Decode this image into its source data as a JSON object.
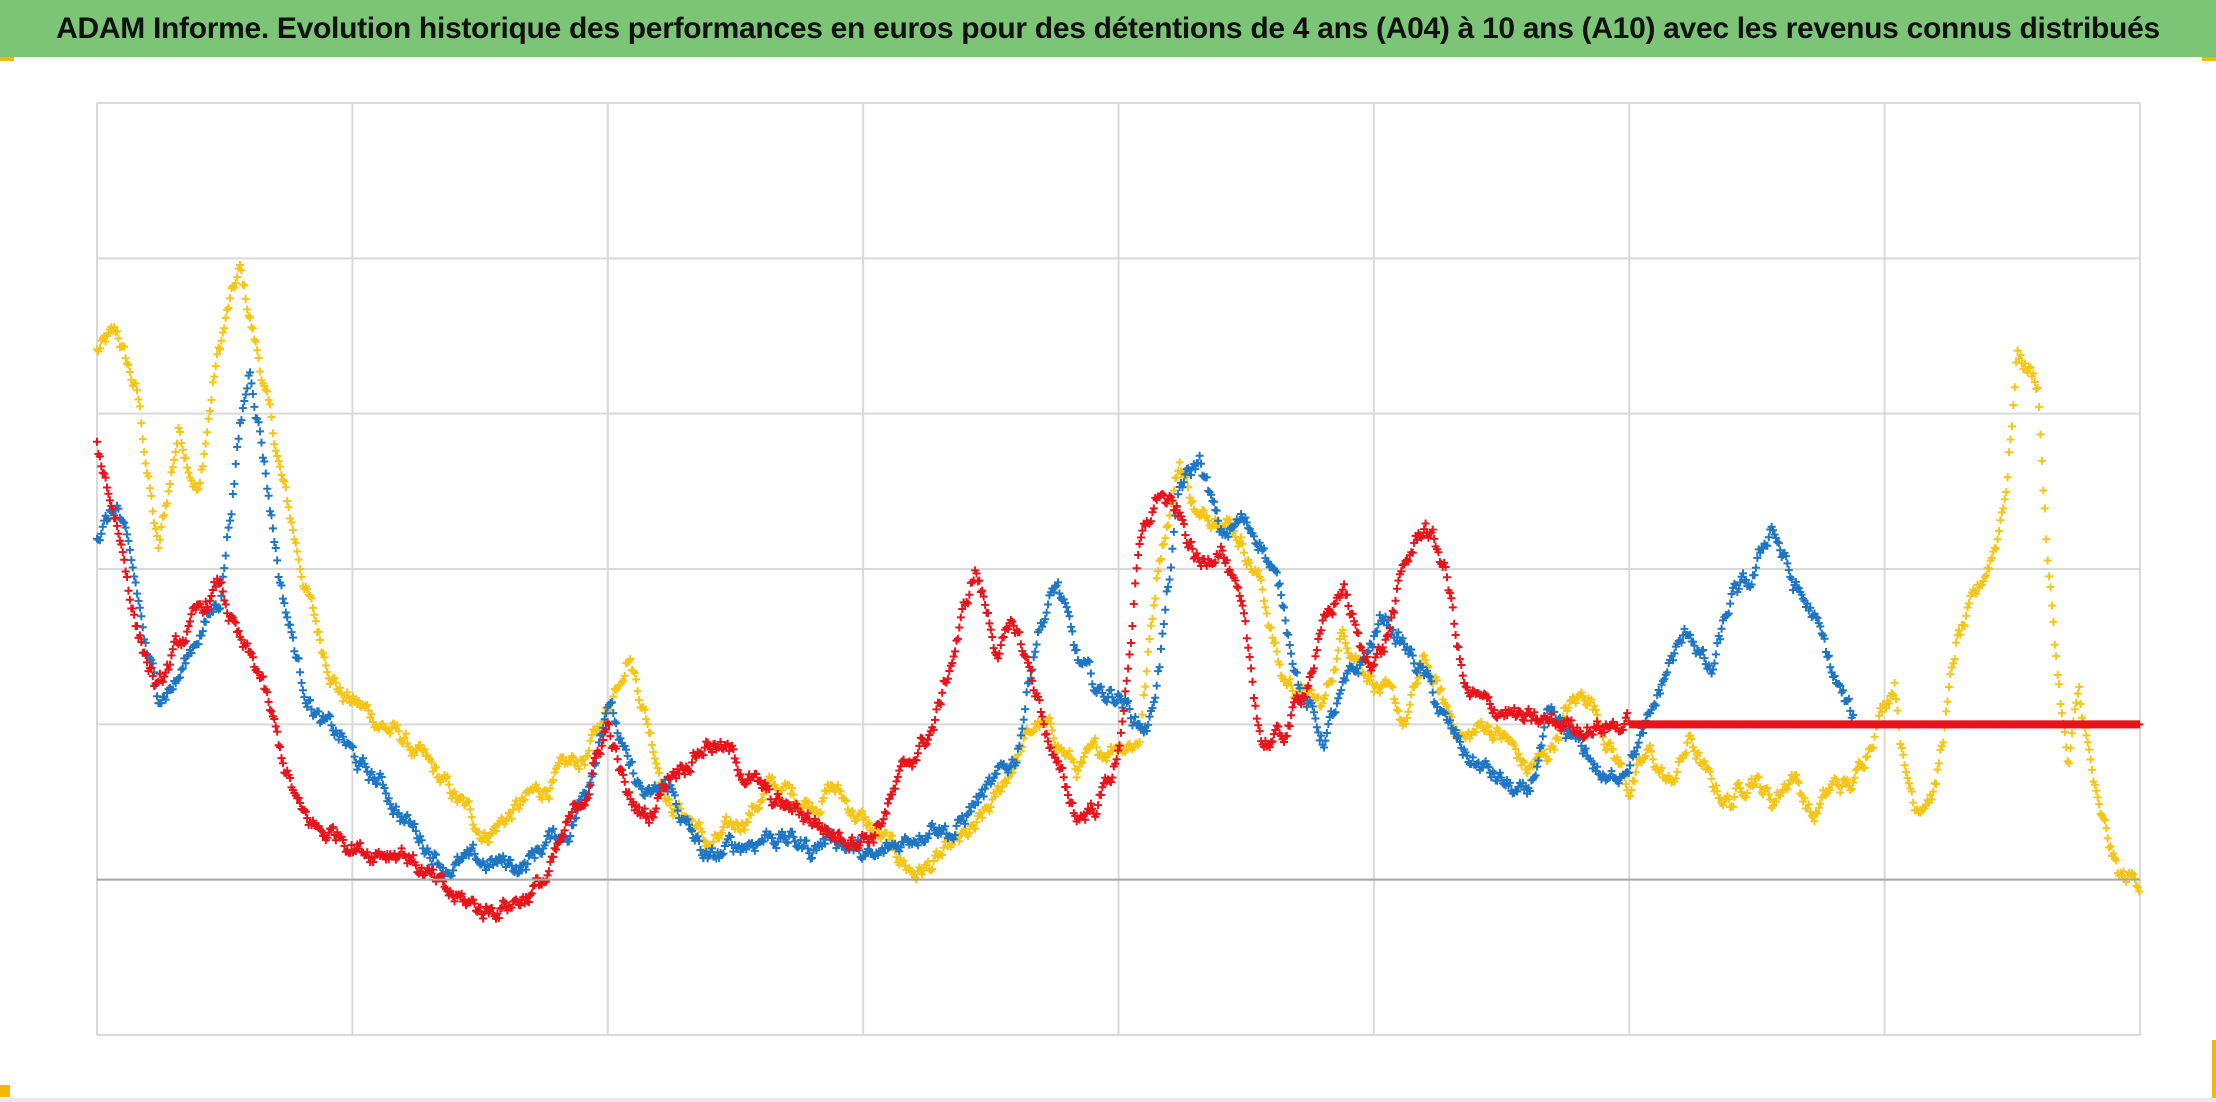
{
  "title": "ADAM Informe. Evolution historique des performances en euros pour des détentions de 4 ans (A04) à 10 ans (A10) avec les revenus connus distribués",
  "colors": {
    "header_bg": "#7cc576",
    "corner_accent": "#f5b800",
    "grid": "#d9d9d9",
    "baseline": "#a6a6a6"
  },
  "chart_data": {
    "type": "scatter",
    "marker": "plus",
    "title": "ADAM Informe. Evolution historique des performances en euros pour des détentions de 4 ans (A04) à 10 ans (A10) avec les revenus connus distribués",
    "xlabel": "",
    "ylabel": "",
    "xlim": [
      0,
      100
    ],
    "ylim": [
      -1,
      5
    ],
    "x_gridlines": 12.5,
    "y_gridlines": 5,
    "baseline_y": 0,
    "grid": true,
    "legend": "none",
    "series": [
      {
        "color": "#f5c518",
        "x": [
          0,
          1,
          2,
          3,
          4,
          5,
          5.8,
          6.5,
          7,
          8,
          9,
          10,
          11,
          12,
          13,
          14,
          15,
          17,
          19,
          21,
          23,
          24,
          25,
          26,
          27,
          28,
          29,
          30,
          31,
          33,
          35,
          36,
          38,
          40,
          41,
          42,
          43,
          44,
          45,
          46,
          47,
          48,
          49,
          50,
          51,
          51.5,
          52,
          53,
          54,
          55,
          56,
          57,
          58,
          59,
          60,
          61,
          62,
          63,
          64,
          65,
          66,
          67,
          68,
          69,
          70,
          71,
          72,
          73,
          74,
          75,
          76,
          77,
          78,
          79,
          80,
          81,
          82,
          83,
          84,
          85,
          86,
          87,
          88,
          88.5,
          89,
          90,
          91,
          92,
          93,
          93.5,
          94,
          95,
          95.5,
          96,
          96.5,
          97,
          98,
          99,
          100
        ],
        "y": [
          3.4,
          3.5,
          3.1,
          2.1,
          2.9,
          2.5,
          3.3,
          3.7,
          3.9,
          3.3,
          2.6,
          2.0,
          1.5,
          1.2,
          1.1,
          1.0,
          0.9,
          0.6,
          0.3,
          0.5,
          0.7,
          0.8,
          1.1,
          1.5,
          1.0,
          0.5,
          0.4,
          0.2,
          0.3,
          0.6,
          0.5,
          0.6,
          0.3,
          0.05,
          0.1,
          0.2,
          0.3,
          0.5,
          0.8,
          1.0,
          0.9,
          0.7,
          0.8,
          0.9,
          0.9,
          1.5,
          2.1,
          2.7,
          2.3,
          2.4,
          2.2,
          1.9,
          1.3,
          1.2,
          1.1,
          1.6,
          1.4,
          1.2,
          1.0,
          1.4,
          1.1,
          0.9,
          1.0,
          0.9,
          0.7,
          0.8,
          1.1,
          1.2,
          0.9,
          0.6,
          0.8,
          0.6,
          0.9,
          0.6,
          0.5,
          0.7,
          0.5,
          0.7,
          0.4,
          0.6,
          0.6,
          1.0,
          1.3,
          0.7,
          0.5,
          0.6,
          1.5,
          1.8,
          2.2,
          2.6,
          3.4,
          3.2,
          2.0,
          1.3,
          0.7,
          1.2,
          0.4,
          0.0,
          0.0
        ]
      },
      {
        "color": "#1f77c4",
        "x": [
          0,
          1,
          2,
          2.5,
          3,
          4,
          5,
          6,
          7,
          7.5,
          8,
          9,
          10,
          11,
          12,
          13,
          14,
          15,
          17,
          19,
          21,
          22,
          23,
          24,
          25,
          26,
          27,
          28,
          29,
          30,
          31,
          33,
          35,
          36,
          38,
          40,
          41,
          42,
          43,
          44,
          45,
          46,
          47,
          48,
          49,
          50,
          51,
          51.5,
          52,
          53,
          54,
          55,
          56,
          57,
          58,
          59,
          60,
          61,
          62,
          63,
          64,
          65,
          66,
          67,
          68,
          69,
          70,
          71,
          72,
          73,
          74,
          75,
          76,
          77,
          78,
          79,
          80,
          81,
          82,
          83,
          84,
          85,
          86
        ],
        "y": [
          2.2,
          2.4,
          1.8,
          1.4,
          1.2,
          1.3,
          1.6,
          1.8,
          2.9,
          3.3,
          2.9,
          1.9,
          1.3,
          1.0,
          0.9,
          0.7,
          0.6,
          0.4,
          0.1,
          0.1,
          0.1,
          0.25,
          0.3,
          0.6,
          1.2,
          0.7,
          0.5,
          0.6,
          0.3,
          0.1,
          0.2,
          0.3,
          0.2,
          0.3,
          0.1,
          0.3,
          0.4,
          0.3,
          0.5,
          0.6,
          0.8,
          1.6,
          1.9,
          1.4,
          1.2,
          1.2,
          1.0,
          1.0,
          1.4,
          2.5,
          2.7,
          2.2,
          2.3,
          2.2,
          1.8,
          1.2,
          0.9,
          1.2,
          1.4,
          1.7,
          1.5,
          1.3,
          1.0,
          0.8,
          0.7,
          0.6,
          0.5,
          1.0,
          0.9,
          0.8,
          0.6,
          0.8,
          1.0,
          1.4,
          1.6,
          1.3,
          1.8,
          1.9,
          2.3,
          1.9,
          1.7,
          1.3,
          1.0
        ]
      },
      {
        "color": "#e8141c",
        "x": [
          0,
          1,
          2,
          2.5,
          3,
          4,
          5,
          6,
          7,
          7.5,
          8,
          9,
          10,
          11,
          12,
          13,
          15,
          17,
          19,
          21,
          22,
          23,
          24,
          25,
          26,
          27,
          28,
          29,
          30,
          31,
          33,
          35,
          36,
          38,
          40,
          41,
          42,
          43,
          44,
          45,
          46,
          47,
          48,
          49,
          50,
          51,
          52,
          53,
          54,
          55,
          56,
          57,
          58,
          59,
          60,
          61,
          62,
          63,
          64,
          65,
          66,
          67,
          68,
          69,
          70,
          71,
          72,
          73,
          74,
          75,
          76,
          76.5,
          77,
          78,
          79,
          80,
          81,
          82,
          83,
          84,
          85,
          86,
          87,
          88,
          89,
          90,
          91,
          92,
          93,
          94,
          95,
          96,
          97,
          98,
          99,
          100
        ],
        "y": [
          2.8,
          2.3,
          1.6,
          1.4,
          1.2,
          1.5,
          1.7,
          1.9,
          1.5,
          1.4,
          1.3,
          0.8,
          0.4,
          0.3,
          0.3,
          0.2,
          0.2,
          -0.1,
          -0.2,
          -0.1,
          0.0,
          0.3,
          0.6,
          1.0,
          0.5,
          0.4,
          0.7,
          0.8,
          0.9,
          0.8,
          0.5,
          0.4,
          0.3,
          0.3,
          0.8,
          1.0,
          1.5,
          2.0,
          1.5,
          1.6,
          1.2,
          0.7,
          0.4,
          0.5,
          0.8,
          2.1,
          2.5,
          2.3,
          2.0,
          2.2,
          1.7,
          0.9,
          0.9,
          1.2,
          1.6,
          1.9,
          1.4,
          1.5,
          2.0,
          2.3,
          2.0,
          1.2,
          1.1,
          1.1,
          1.0,
          1.0,
          1.0,
          1.0,
          1.0,
          1.0,
          1.0,
          1.0,
          1.0,
          1.0,
          1.0,
          1.0,
          1.0,
          1.0,
          1.0,
          1.0,
          1.0,
          1.0,
          1.0,
          1.0,
          1.0,
          1.0,
          1.0,
          1.0,
          1.0,
          1.0,
          1.0,
          1.0,
          1.0,
          1.0,
          1.0,
          1.0
        ]
      }
    ]
  }
}
